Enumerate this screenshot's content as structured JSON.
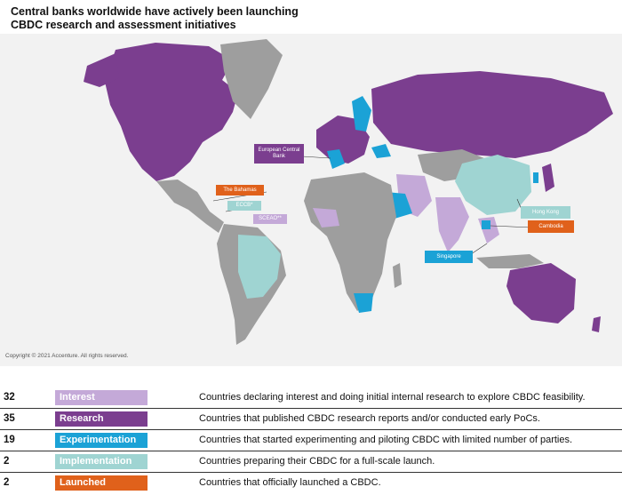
{
  "title": "Central banks worldwide have actively been launching CBDC research and assessment initiatives",
  "copyright": "Copyright © 2021 Accenture. All rights reserved.",
  "colors": {
    "interest": "#c4a9d8",
    "research": "#7b3e8f",
    "experimentation": "#1ba2d6",
    "implementation": "#9fd4d2",
    "launched": "#e0611b",
    "no_data": "#9e9e9e",
    "map_background": "#f2f2f2"
  },
  "callouts": {
    "ecb": "European Central Bank",
    "bahamas": "The Bahamas",
    "eccb": "ECCB*",
    "sceao": "SCEAO**",
    "hong_kong": "Hong Kong",
    "cambodia": "Cambodia",
    "singapore": "Singapore"
  },
  "legend": [
    {
      "count": "32",
      "label": "Interest",
      "color": "#c4a9d8",
      "description": "Countries declaring interest and doing initial internal research to explore CBDC feasibility."
    },
    {
      "count": "35",
      "label": "Research",
      "color": "#7b3e8f",
      "description": "Countries that published CBDC research reports and/or conducted early PoCs."
    },
    {
      "count": "19",
      "label": "Experimentation",
      "color": "#1ba2d6",
      "description": "Countries that started experimenting and piloting CBDC with limited number of parties."
    },
    {
      "count": "2",
      "label": "Implementation",
      "color": "#9fd4d2",
      "description": "Countries preparing their CBDC for a full-scale launch."
    },
    {
      "count": "2",
      "label": "Launched",
      "color": "#e0611b",
      "description": "Countries that officially launched a CBDC."
    }
  ]
}
